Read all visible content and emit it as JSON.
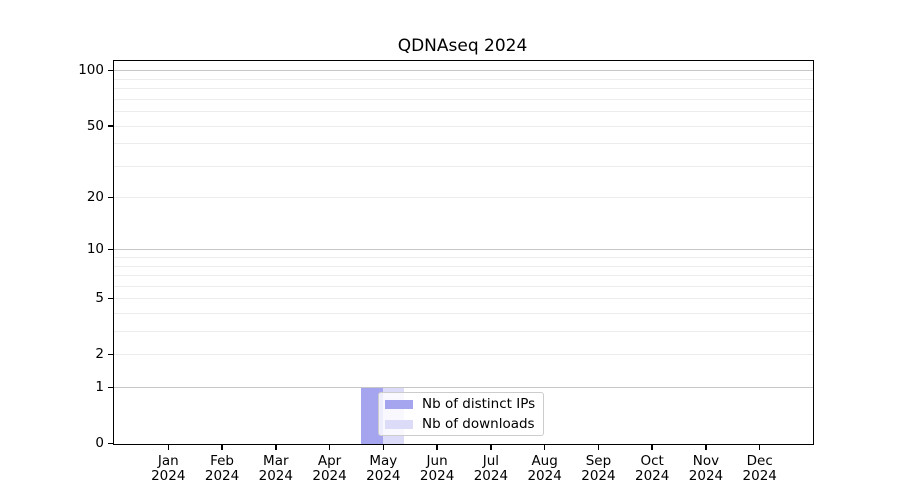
{
  "title": "QDNAseq 2024",
  "colors": {
    "distinct_ips": "#a5a5ef",
    "downloads": "#dcdcf8",
    "grid_minor": "#ececec",
    "grid_decade": "#c6c6c6",
    "axis": "#000000",
    "legend_border": "#cccccc"
  },
  "legend": {
    "items": [
      {
        "label": "Nb of distinct IPs",
        "color_key": "distinct_ips"
      },
      {
        "label": "Nb of downloads",
        "color_key": "downloads"
      }
    ]
  },
  "chart_data": {
    "type": "bar",
    "title": "QDNAseq 2024",
    "categories": [
      "Jan 2024",
      "Feb 2024",
      "Mar 2024",
      "Apr 2024",
      "May 2024",
      "Jun 2024",
      "Jul 2024",
      "Aug 2024",
      "Sep 2024",
      "Oct 2024",
      "Nov 2024",
      "Dec 2024"
    ],
    "x_tick_line1": [
      "Jan",
      "Feb",
      "Mar",
      "Apr",
      "May",
      "Jun",
      "Jul",
      "Aug",
      "Sep",
      "Oct",
      "Nov",
      "Dec"
    ],
    "x_tick_line2": [
      "2024",
      "2024",
      "2024",
      "2024",
      "2024",
      "2024",
      "2024",
      "2024",
      "2024",
      "2024",
      "2024",
      "2024"
    ],
    "series": [
      {
        "name": "Nb of distinct IPs",
        "color_key": "distinct_ips",
        "values": [
          0,
          0,
          0,
          0,
          1,
          0,
          0,
          0,
          0,
          0,
          0,
          0
        ]
      },
      {
        "name": "Nb of downloads",
        "color_key": "downloads",
        "values": [
          0,
          0,
          0,
          0,
          1,
          0,
          0,
          0,
          0,
          0,
          0,
          0
        ]
      }
    ],
    "yscale": "log1p",
    "y_ticks": [
      0,
      1,
      2,
      5,
      10,
      20,
      50,
      100
    ],
    "y_decade_grid": [
      1,
      10,
      100
    ],
    "y_minor_grid": [
      2,
      3,
      4,
      5,
      6,
      7,
      8,
      9,
      20,
      30,
      40,
      50,
      60,
      70,
      80,
      90
    ],
    "ylim": [
      0,
      114
    ],
    "xlabel": "",
    "ylabel": "",
    "grid": true,
    "legend_position": "inside lower-center"
  }
}
